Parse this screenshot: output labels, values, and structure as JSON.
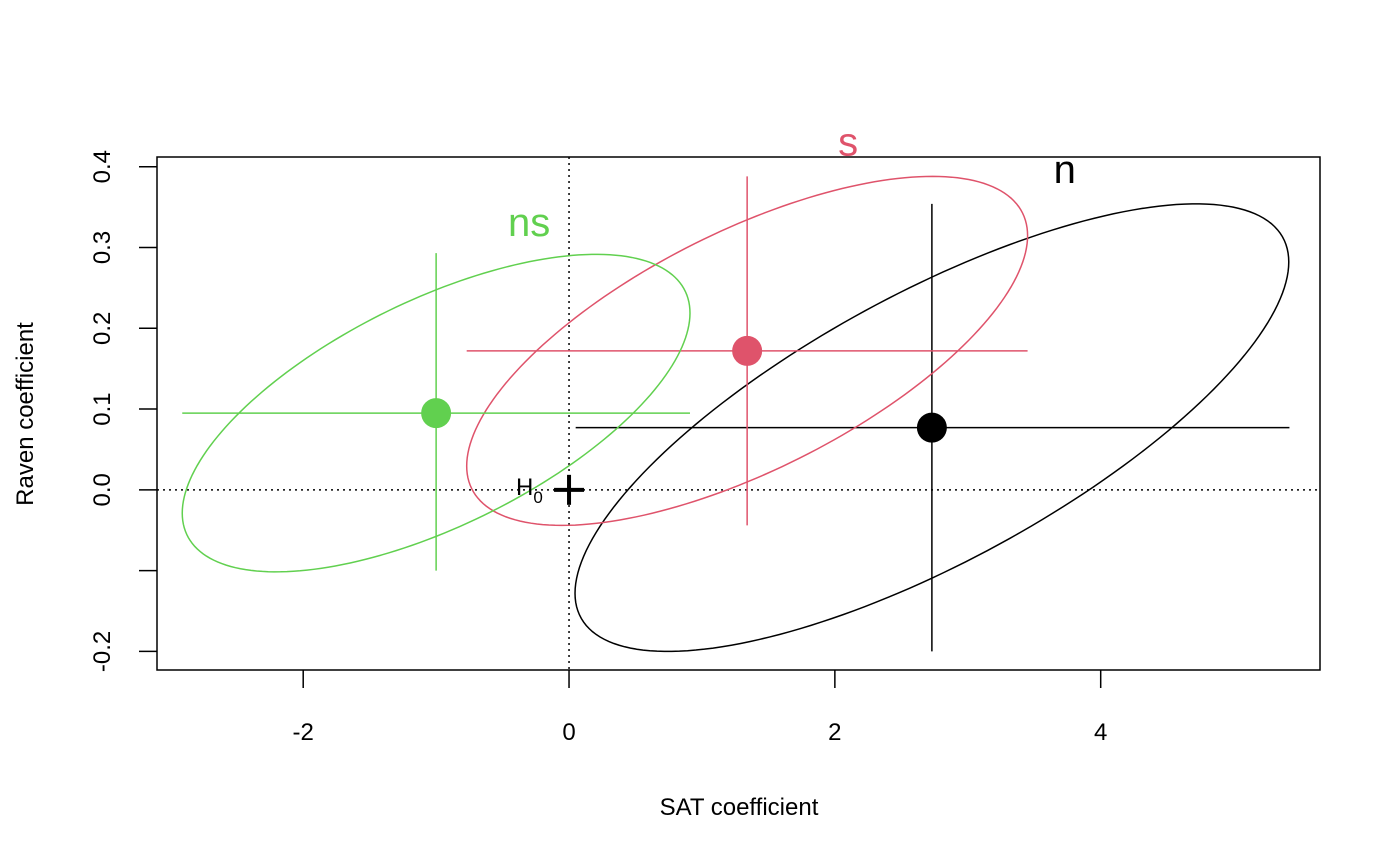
{
  "chart_data": {
    "type": "scatter",
    "title": "",
    "xlabel": "SAT coefficient",
    "ylabel": "Raven coefficient",
    "xlim": [
      -3.1,
      5.65
    ],
    "ylim": [
      -0.223,
      0.412
    ],
    "x_ticks": [
      -2,
      0,
      2,
      4
    ],
    "x_tick_labels": [
      "-2",
      "0",
      "2",
      "4"
    ],
    "y_ticks": [
      -0.2,
      -0.1,
      0.0,
      0.1,
      0.2,
      0.3,
      0.4
    ],
    "y_tick_labels": [
      "-0.2",
      "",
      "0.0",
      "0.1",
      "0.2",
      "0.3",
      "0.4"
    ],
    "grid": false,
    "legend": "none",
    "reference_lines": {
      "x": 0,
      "y": 0,
      "style": "dotted"
    },
    "h0_marker": {
      "label": "H",
      "subscript": "0",
      "x": 0,
      "y": 0
    },
    "series": [
      {
        "name": "n",
        "color": "#000000",
        "point": {
          "x": 2.73,
          "y": 0.077
        },
        "x_interval": [
          0.05,
          5.42
        ],
        "y_interval": [
          -0.2,
          0.354
        ],
        "ellipse": {
          "center": [
            2.73,
            0.077
          ],
          "x_range": [
            0.05,
            5.42
          ],
          "y_range": [
            -0.2,
            0.354
          ],
          "xy_correlation": 0.74
        },
        "label": {
          "text": "n",
          "x": 3.73,
          "y": 0.38
        }
      },
      {
        "name": "s",
        "color": "#df536b",
        "point": {
          "x": 1.34,
          "y": 0.172
        },
        "x_interval": [
          -0.77,
          3.45
        ],
        "y_interval": [
          -0.044,
          0.388
        ],
        "ellipse": {
          "center": [
            1.34,
            0.172
          ],
          "x_range": [
            -0.77,
            3.45
          ],
          "y_range": [
            -0.044,
            0.388
          ],
          "xy_correlation": 0.66
        },
        "label": {
          "text": "s",
          "x": 2.1,
          "y": 0.414
        }
      },
      {
        "name": "ns",
        "color": "#61d04f",
        "point": {
          "x": -1.0,
          "y": 0.095
        },
        "x_interval": [
          -2.91,
          0.91
        ],
        "y_interval": [
          -0.1,
          0.293
        ],
        "ellipse": {
          "center": [
            -1.0,
            0.095
          ],
          "x_range": [
            -2.91,
            0.91
          ],
          "y_range": [
            -0.1,
            0.293
          ],
          "xy_correlation": 0.63
        },
        "label": {
          "text": "ns",
          "x": -0.3,
          "y": 0.314
        }
      }
    ]
  }
}
